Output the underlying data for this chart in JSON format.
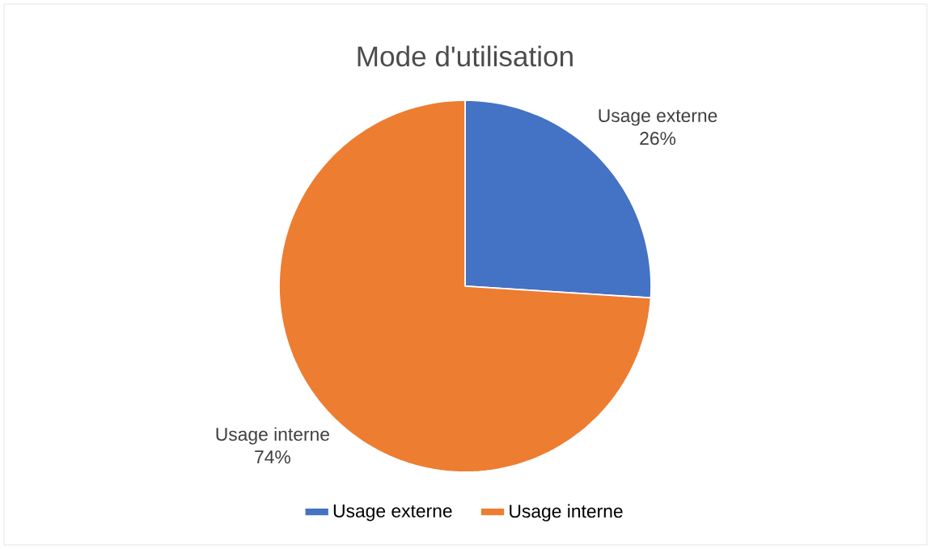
{
  "chart_data": {
    "type": "pie",
    "title": "Mode d'utilisation",
    "categories": [
      "Usage externe",
      "Usage interne"
    ],
    "values": [
      26,
      74
    ],
    "value_labels": [
      "26%",
      "74%"
    ],
    "colors": [
      "#4472c4",
      "#ed7d31"
    ],
    "legend": "bottom"
  }
}
